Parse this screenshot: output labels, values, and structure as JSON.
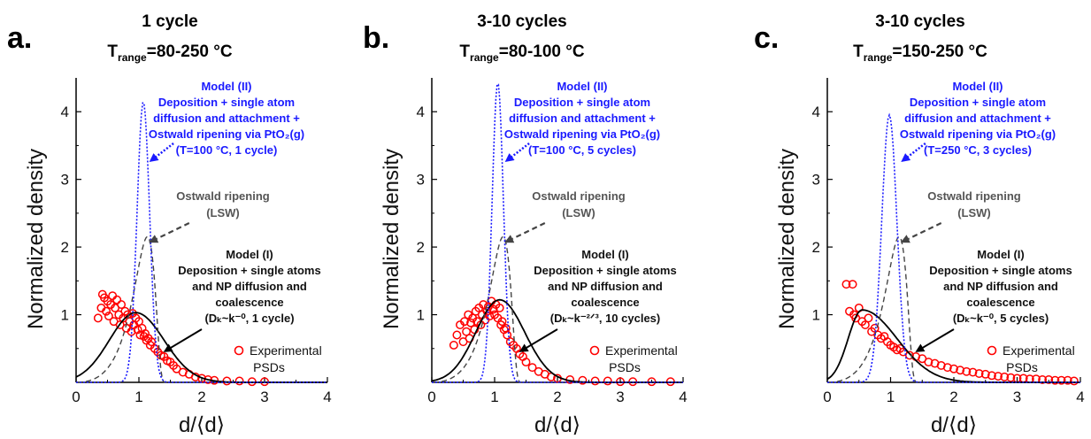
{
  "colors": {
    "model_ii": "#1a1aff",
    "lsw": "#444444",
    "model_i": "#000000",
    "experimental": "#ff0000"
  },
  "shared": {
    "xlabel": "d/⟨d⟩",
    "ylabel": "Normalized density",
    "x_ticks": [
      "0",
      "1",
      "2",
      "3",
      "4"
    ],
    "y_ticks": [
      "1",
      "2",
      "3",
      "4"
    ],
    "legend_line1": "Experimental",
    "legend_line2": "PSDs"
  },
  "chart_data": [
    {
      "type": "line",
      "panel": "a.",
      "title_line1": "1 cycle",
      "title_line2_main": "T",
      "title_line2_sub": "range",
      "title_line2_rest": "=80-250 °C",
      "xlim": [
        0,
        4
      ],
      "ylim": [
        0,
        4.5
      ],
      "model_ii_lines": [
        "Model (II)",
        "Deposition + single atom",
        "diffusion and attachment +",
        "Ostwald ripening via PtO₂(g)",
        "(T=100 °C, 1 cycle)"
      ],
      "lsw_lines": [
        "Ostwald ripening",
        "(LSW)"
      ],
      "model_i_lines": [
        "Model (I)",
        "Deposition + single atoms",
        "and NP diffusion and",
        "coalescence",
        "(Dₖ~k⁻⁰, 1 cycle)"
      ],
      "series": [
        {
          "name": "Model (II)",
          "style": "dotted",
          "peak_x": 1.07,
          "peak_y": 4.15,
          "width": 0.1
        },
        {
          "name": "Ostwald ripening (LSW)",
          "style": "dashed",
          "peak_x": 1.13,
          "peak_y": 2.12
        },
        {
          "name": "Model (I)",
          "style": "solid",
          "peak_x": 0.95,
          "peak_y": 1.03,
          "width_left": 0.42,
          "width_right": 0.45
        },
        {
          "name": "Experimental PSDs",
          "style": "markers",
          "x": [
            0.35,
            0.4,
            0.42,
            0.45,
            0.48,
            0.5,
            0.52,
            0.55,
            0.58,
            0.6,
            0.62,
            0.65,
            0.68,
            0.7,
            0.72,
            0.75,
            0.78,
            0.8,
            0.82,
            0.85,
            0.88,
            0.9,
            0.92,
            0.95,
            0.98,
            1.0,
            1.02,
            1.05,
            1.08,
            1.1,
            1.12,
            1.15,
            1.18,
            1.2,
            1.25,
            1.3,
            1.35,
            1.4,
            1.45,
            1.5,
            1.55,
            1.6,
            1.7,
            1.8,
            1.9,
            2.0,
            2.1,
            2.2,
            2.4,
            2.6,
            2.8,
            3.0
          ],
          "y": [
            0.95,
            1.1,
            1.3,
            1.25,
            1.05,
            1.2,
            0.98,
            1.15,
            1.28,
            0.9,
            1.1,
            1.22,
            1.0,
            0.85,
            1.15,
            0.95,
            1.05,
            0.8,
            1.0,
            0.9,
            0.75,
            1.02,
            0.85,
            0.95,
            0.78,
            0.9,
            0.7,
            0.8,
            0.68,
            0.72,
            0.62,
            0.65,
            0.55,
            0.6,
            0.5,
            0.45,
            0.4,
            0.38,
            0.32,
            0.3,
            0.25,
            0.2,
            0.15,
            0.12,
            0.08,
            0.06,
            0.04,
            0.03,
            0.02,
            0.02,
            0.01,
            0.01
          ]
        }
      ]
    },
    {
      "type": "line",
      "panel": "b.",
      "title_line1": "3-10 cycles",
      "title_line2_main": "T",
      "title_line2_sub": "range",
      "title_line2_rest": "=80-100 °C",
      "xlim": [
        0,
        4
      ],
      "ylim": [
        0,
        4.5
      ],
      "model_ii_lines": [
        "Model (II)",
        "Deposition + single atom",
        "diffusion and attachment +",
        "Ostwald ripening via PtO₂(g)",
        "(T=100 °C, 5 cycles)"
      ],
      "lsw_lines": [
        "Ostwald ripening",
        "(LSW)"
      ],
      "model_i_lines": [
        "Model (I)",
        "Deposition + single atoms",
        "and NP diffusion and",
        "coalescence",
        "(Dₖ~k⁻²ᐟ³, 10 cycles)"
      ],
      "series": [
        {
          "name": "Model (II)",
          "style": "dotted",
          "peak_x": 1.05,
          "peak_y": 4.43,
          "width": 0.09
        },
        {
          "name": "Ostwald ripening (LSW)",
          "style": "dashed",
          "peak_x": 1.13,
          "peak_y": 2.12
        },
        {
          "name": "Model (I)",
          "style": "solid",
          "peak_x": 1.08,
          "peak_y": 1.22,
          "width_left": 0.38,
          "width_right": 0.4
        },
        {
          "name": "Experimental PSDs",
          "style": "markers",
          "x": [
            0.35,
            0.4,
            0.45,
            0.5,
            0.52,
            0.55,
            0.58,
            0.6,
            0.62,
            0.65,
            0.68,
            0.7,
            0.72,
            0.75,
            0.78,
            0.8,
            0.82,
            0.85,
            0.88,
            0.9,
            0.92,
            0.95,
            0.98,
            1.0,
            1.02,
            1.05,
            1.08,
            1.1,
            1.12,
            1.15,
            1.18,
            1.2,
            1.25,
            1.3,
            1.35,
            1.4,
            1.45,
            1.5,
            1.6,
            1.7,
            1.8,
            1.9,
            2.0,
            2.2,
            2.4,
            2.6,
            2.8,
            3.0,
            3.2,
            3.5,
            3.8
          ],
          "y": [
            0.55,
            0.7,
            0.85,
            0.6,
            0.9,
            0.75,
            1.0,
            0.65,
            0.88,
            0.95,
            0.78,
            1.05,
            0.9,
            1.1,
            0.85,
            1.0,
            1.15,
            0.92,
            1.05,
            1.12,
            0.98,
            1.2,
            1.08,
            1.0,
            1.15,
            0.95,
            1.1,
            0.85,
            0.9,
            0.78,
            0.8,
            0.7,
            0.6,
            0.55,
            0.5,
            0.42,
            0.38,
            0.3,
            0.22,
            0.16,
            0.12,
            0.08,
            0.06,
            0.04,
            0.03,
            0.02,
            0.02,
            0.01,
            0.01,
            0.01,
            0.01
          ]
        }
      ]
    },
    {
      "type": "line",
      "panel": "c.",
      "title_line1": "3-10 cycles",
      "title_line2_main": "T",
      "title_line2_sub": "range",
      "title_line2_rest": "=150-250 °C",
      "xlim": [
        0,
        4
      ],
      "ylim": [
        0,
        4.5
      ],
      "model_ii_lines": [
        "Model (II)",
        "Deposition + single atom",
        "diffusion and attachment +",
        "Ostwald ripening via PtO₂(g)",
        "(T=250 °C, 3 cycles)"
      ],
      "lsw_lines": [
        "Ostwald ripening",
        "(LSW)"
      ],
      "model_i_lines": [
        "Model (I)",
        "Deposition + single atoms",
        "and NP diffusion and",
        "coalescence",
        "(Dₖ~k⁻⁰, 5 cycles)"
      ],
      "series": [
        {
          "name": "Model (II)",
          "style": "dotted",
          "peak_x": 0.98,
          "peak_y": 3.95,
          "width": 0.12
        },
        {
          "name": "Ostwald ripening (LSW)",
          "style": "dashed",
          "peak_x": 1.13,
          "peak_y": 2.12
        },
        {
          "name": "Model (I)",
          "style": "solid",
          "peak_x": 0.55,
          "peak_y": 1.07,
          "width_left": 0.22,
          "width_right": 0.55
        },
        {
          "name": "Experimental PSDs",
          "style": "markers",
          "x": [
            0.3,
            0.35,
            0.4,
            0.42,
            0.45,
            0.5,
            0.55,
            0.6,
            0.65,
            0.7,
            0.75,
            0.8,
            0.85,
            0.9,
            0.95,
            1.0,
            1.05,
            1.1,
            1.15,
            1.2,
            1.3,
            1.4,
            1.5,
            1.6,
            1.7,
            1.8,
            1.9,
            2.0,
            2.1,
            2.2,
            2.3,
            2.4,
            2.5,
            2.6,
            2.7,
            2.8,
            2.9,
            3.0,
            3.1,
            3.2,
            3.3,
            3.4,
            3.5,
            3.6,
            3.7,
            3.8,
            3.9
          ],
          "y": [
            1.45,
            1.05,
            1.45,
            1.0,
            0.95,
            1.1,
            0.9,
            0.85,
            0.95,
            0.75,
            0.8,
            0.7,
            0.65,
            0.68,
            0.6,
            0.55,
            0.52,
            0.48,
            0.5,
            0.45,
            0.4,
            0.38,
            0.35,
            0.3,
            0.28,
            0.25,
            0.22,
            0.2,
            0.18,
            0.16,
            0.15,
            0.13,
            0.12,
            0.1,
            0.09,
            0.08,
            0.07,
            0.06,
            0.06,
            0.05,
            0.05,
            0.04,
            0.04,
            0.03,
            0.03,
            0.03,
            0.02
          ]
        }
      ]
    }
  ]
}
